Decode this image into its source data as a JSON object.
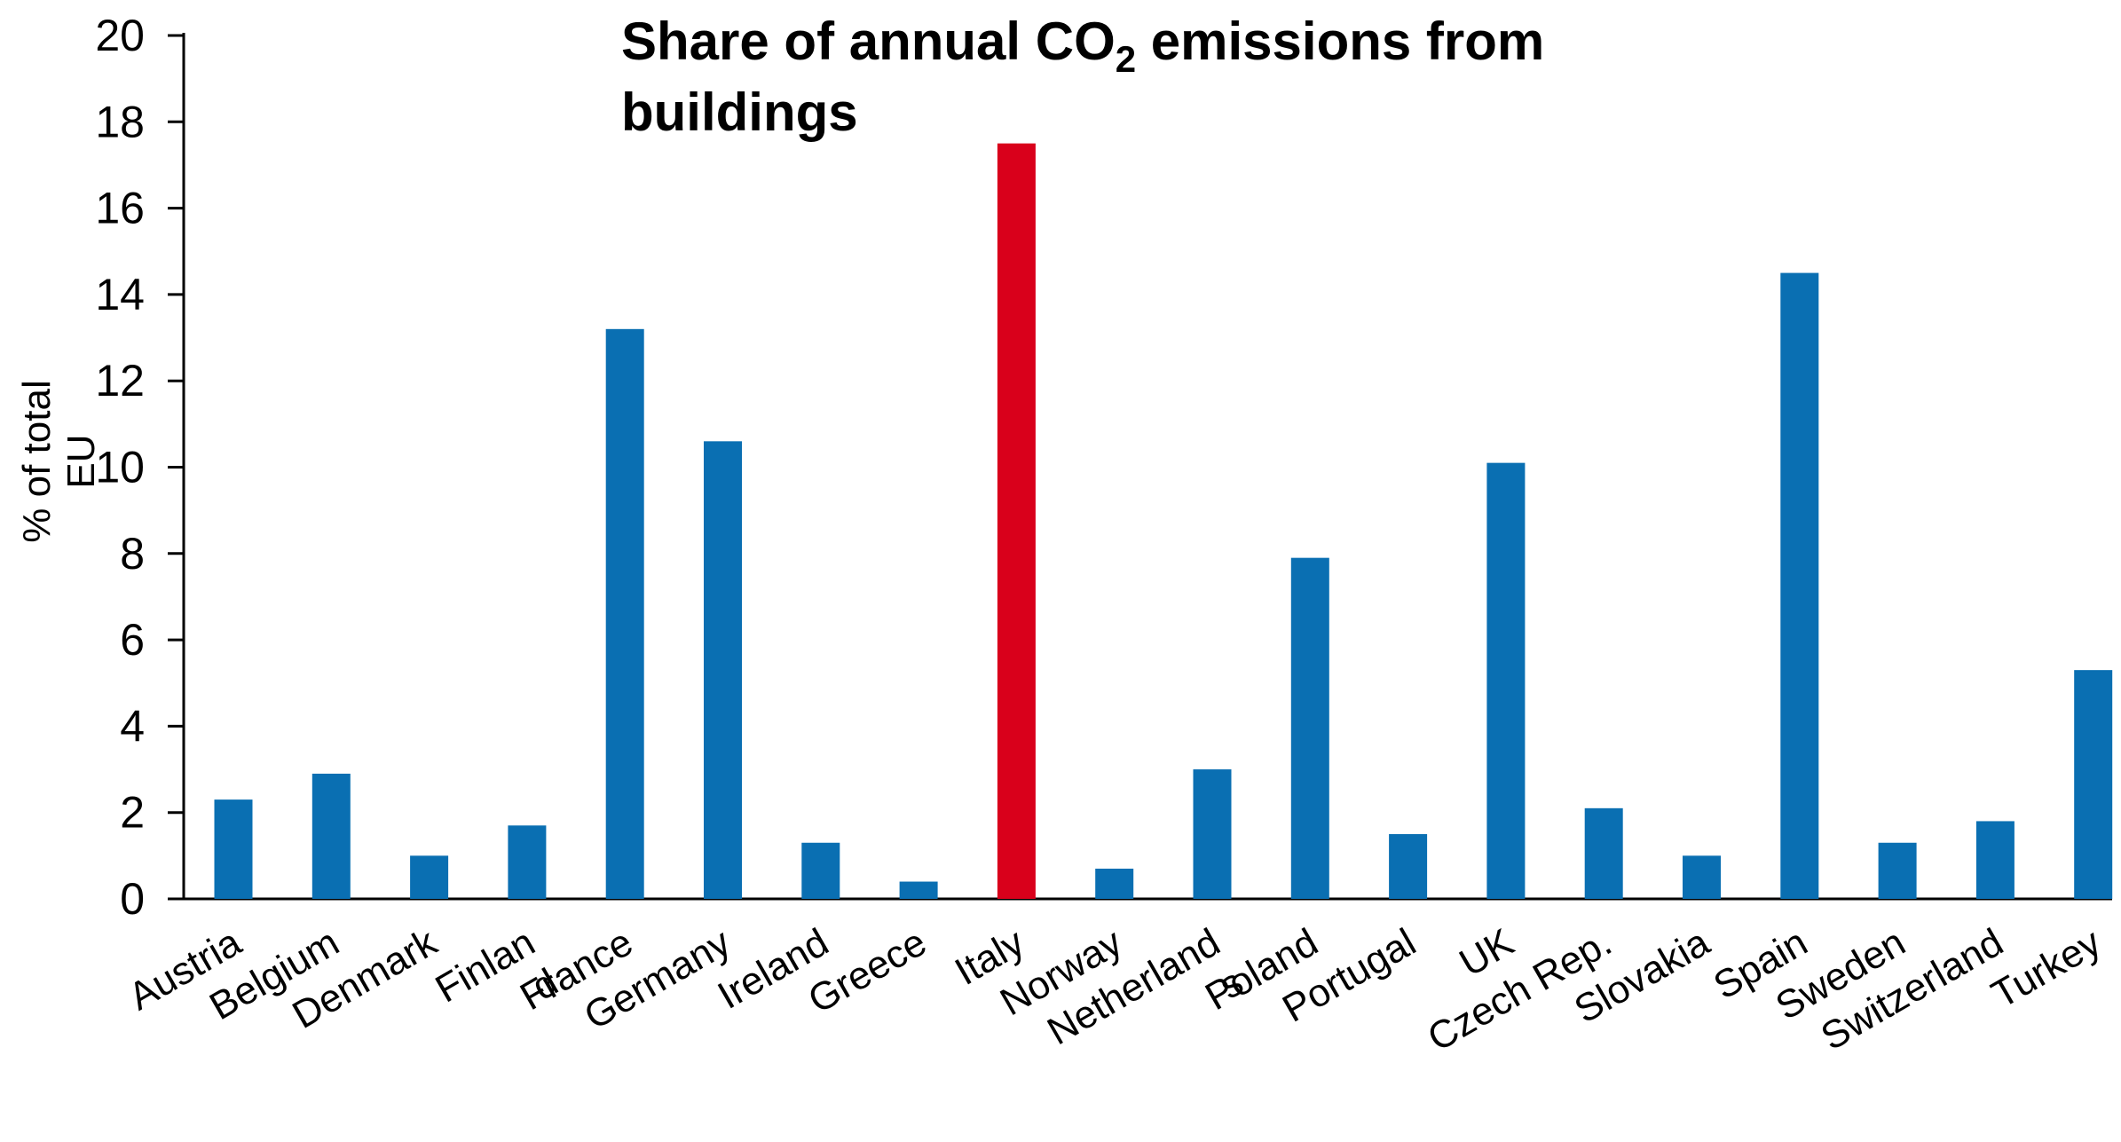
{
  "colors": {
    "bar": "#0a6fb2",
    "highlight": "#d9001b",
    "axis": "#000000"
  },
  "chart_data": {
    "type": "bar",
    "title_line1": "Share of  annual CO",
    "title_subscript": "2",
    "title_line1_end": " emissions from",
    "title_line2": "buildings",
    "ylabel_line1": "% of total",
    "ylabel_line2": "EU",
    "xlabel": "",
    "ylim": [
      0,
      20
    ],
    "yticks": [
      "0",
      "2",
      "4",
      "6",
      "8",
      "10",
      "12",
      "14",
      "16",
      "18",
      "20"
    ],
    "categories": [
      "Austria",
      "Belgium",
      "Denmark",
      "Finlan\nd",
      "France",
      "Germany",
      "Ireland",
      "Greece",
      "Italy",
      "Norway",
      "Netherland\ns",
      "Poland",
      "Portugal",
      "UK",
      "Czech Rep.",
      "Slovakia",
      "Spain",
      "Sweden",
      "Switzerland",
      "Turkey"
    ],
    "values": [
      2.3,
      2.9,
      1.0,
      1.7,
      13.2,
      10.6,
      1.3,
      0.4,
      17.5,
      0.7,
      3.0,
      7.9,
      1.5,
      10.1,
      2.1,
      1.0,
      14.5,
      1.3,
      1.8,
      5.3
    ],
    "highlight_category": "Italy",
    "grid": false,
    "legend": "none"
  }
}
